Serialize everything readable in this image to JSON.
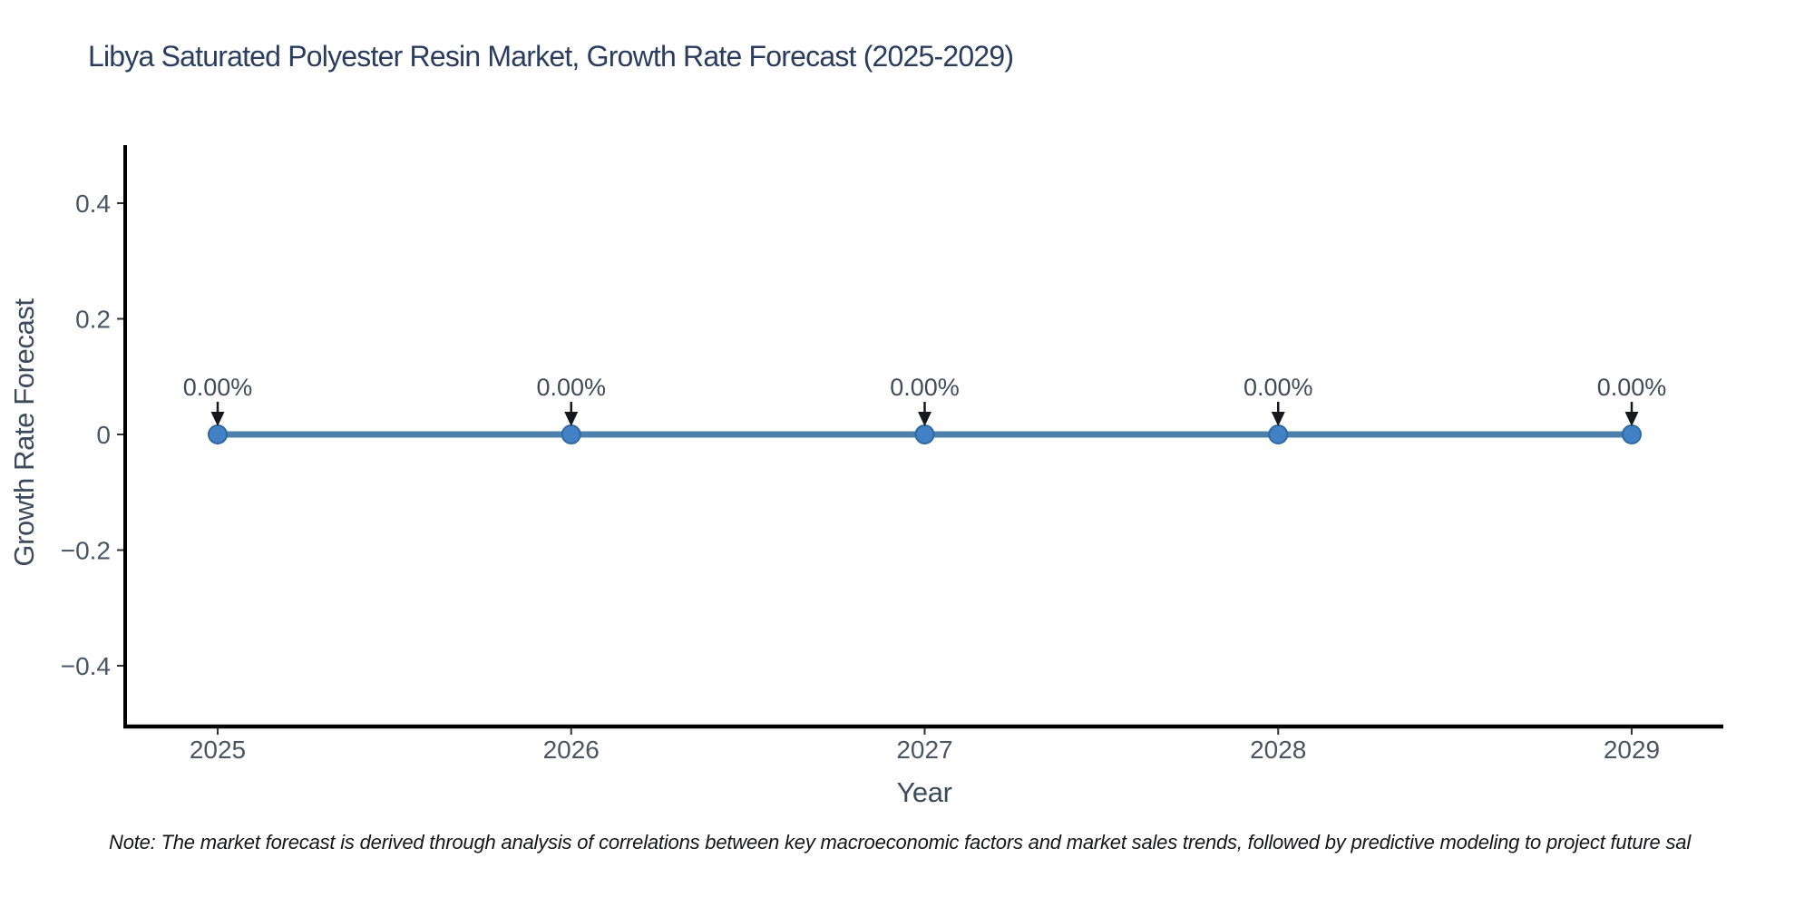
{
  "figure": {
    "note": "Note: The market forecast is derived through analysis of correlations between key macroeconomic factors and market sales trends, followed by predictive modeling to project future sal"
  },
  "chart_data": {
    "type": "line",
    "title": "Libya Saturated Polyester Resin Market, Growth Rate Forecast (2025-2029)",
    "xlabel": "Year",
    "ylabel": "Growth Rate Forecast",
    "x": [
      2025,
      2026,
      2027,
      2028,
      2029
    ],
    "x_tick_labels": [
      "2025",
      "2026",
      "2027",
      "2028",
      "2029"
    ],
    "series": [
      {
        "name": "Growth Rate Forecast",
        "values": [
          0,
          0,
          0,
          0,
          0
        ]
      }
    ],
    "point_labels": [
      "0.00%",
      "0.00%",
      "0.00%",
      "0.00%",
      "0.00%"
    ],
    "y_ticks": [
      0.4,
      0.2,
      0,
      -0.2,
      -0.4
    ],
    "y_tick_labels": [
      "0.4",
      "0.2",
      "0",
      "−0.2",
      "−0.4"
    ],
    "ylim": [
      -0.5,
      0.5
    ],
    "xlim_years": [
      2024.74,
      2029.26
    ],
    "grid": false,
    "legend": "none",
    "colors": {
      "background": "#ffffff",
      "line": "#4e80ac",
      "marker_fill": "#4281c3",
      "marker_edge": "#2f69a3",
      "axis": "#000000",
      "tick_mark": "#333333",
      "tick_label": "#4b5563",
      "axis_title": "#3d4a5c",
      "title": "#2b3d5f",
      "annotation_text": "#414b59",
      "arrow": "#16181d"
    }
  }
}
